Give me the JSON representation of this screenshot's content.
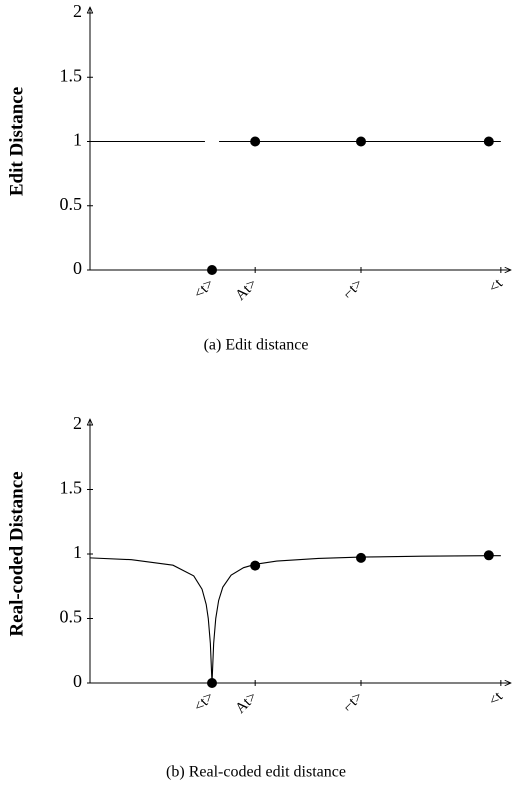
{
  "chart_data": [
    {
      "type": "line",
      "caption": "(a)  Edit distance",
      "y_label": "Edit Distance",
      "xlim": [
        0,
        100
      ],
      "ylim": [
        0,
        2
      ],
      "yticks": [
        0,
        0.5,
        1,
        1.5,
        2
      ],
      "xticks": [
        {
          "value": 29.4,
          "label": "<t>"
        },
        {
          "value": 39.8,
          "label": "At>"
        },
        {
          "value": 65.3,
          "label": "⌐t>"
        },
        {
          "value": 99,
          "label": "<t"
        }
      ],
      "series": [
        {
          "kind": "line",
          "color": "#000000",
          "x": [
            0,
            27.7,
            29.4,
            31.1,
            99
          ],
          "values": [
            1,
            1,
            null,
            1,
            1
          ]
        },
        {
          "kind": "scatter",
          "color": "#000000",
          "x": [
            29.4,
            39.8,
            65.3,
            96.1
          ],
          "values": [
            0,
            1,
            1,
            1
          ]
        }
      ]
    },
    {
      "type": "line",
      "caption": "(b)  Real-coded edit distance",
      "y_label": "Real-coded Distance",
      "xlim": [
        0,
        100
      ],
      "ylim": [
        0,
        2
      ],
      "yticks": [
        0,
        0.5,
        1,
        1.5,
        2
      ],
      "xticks": [
        {
          "value": 29.4,
          "label": "<t>"
        },
        {
          "value": 39.8,
          "label": "At>"
        },
        {
          "value": 65.3,
          "label": "⌐t>"
        },
        {
          "value": 99,
          "label": "<t"
        }
      ],
      "series": [
        {
          "kind": "line",
          "color": "#000000",
          "x": [
            0,
            10,
            20,
            25,
            27,
            28,
            28.5,
            29,
            29.4,
            29.8,
            30.3,
            31,
            32,
            34,
            37,
            39.8,
            45,
            55,
            65.3,
            80,
            96.1,
            99
          ],
          "values": [
            0.97,
            0.956,
            0.913,
            0.83,
            0.727,
            0.609,
            0.5,
            0.308,
            0,
            0.308,
            0.5,
            0.64,
            0.743,
            0.836,
            0.894,
            0.92,
            0.945,
            0.966,
            0.976,
            0.983,
            0.987,
            0.987
          ]
        },
        {
          "kind": "scatter",
          "color": "#000000",
          "x": [
            29.4,
            39.8,
            65.3,
            96.1
          ],
          "values": [
            0,
            0.91,
            0.97,
            0.99
          ]
        }
      ]
    }
  ]
}
